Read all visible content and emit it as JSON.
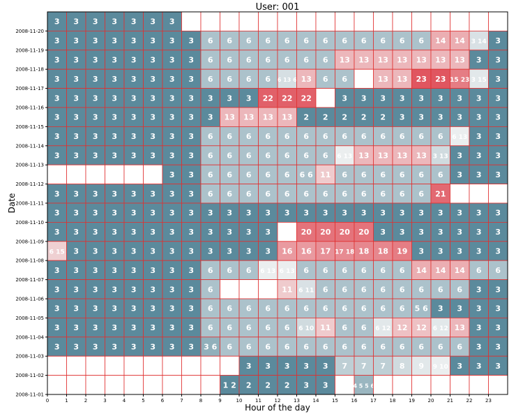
{
  "chart_data": {
    "type": "heatmap",
    "title": "User: 001",
    "xlabel": "Hour of the day",
    "ylabel": "Date",
    "x_ticks": [
      "0",
      "1",
      "2",
      "3",
      "4",
      "5",
      "6",
      "7",
      "8",
      "9",
      "10",
      "11",
      "12",
      "13",
      "14",
      "15",
      "16",
      "17",
      "18",
      "19",
      "20",
      "21",
      "22",
      "23"
    ],
    "y_ticks": [
      "2008-11-20",
      "2008-11-19",
      "2008-11-18",
      "2008-11-17",
      "2008-11-16",
      "2008-11-15",
      "2008-11-14",
      "2008-11-13",
      "2008-11-12",
      "2008-11-11",
      "2008-11-10",
      "2008-11-09",
      "2008-11-08",
      "2008-11-07",
      "2008-11-06",
      "2008-11-05",
      "2008-11-04",
      "2008-11-03",
      "2008-11-02",
      "2008-11-01"
    ],
    "xlim": [
      0,
      24
    ],
    "ylim": [
      "2008-11-01",
      "2008-11-21"
    ],
    "grid": true,
    "colors": {
      "low": "#5b8a9c",
      "mid": "#f4f4f4",
      "high": "#e05660",
      "cell_border": "#e03030",
      "frame": "#000000"
    },
    "vmin": 1,
    "vmax": 23,
    "rows": [
      {
        "label": "2008-11-20",
        "values": [
          3,
          3,
          3,
          3,
          3,
          3,
          3,
          null,
          null,
          null,
          null,
          null,
          null,
          null,
          null,
          null,
          null,
          null,
          null,
          null,
          null,
          null,
          null,
          null
        ]
      },
      {
        "label": "2008-11-19",
        "values": [
          3,
          3,
          3,
          3,
          3,
          3,
          3,
          3,
          6,
          6,
          6,
          6,
          6,
          6,
          6,
          6,
          6,
          6,
          6,
          6,
          14,
          14,
          "3 14",
          3
        ]
      },
      {
        "label": "2008-11-18",
        "values": [
          3,
          3,
          3,
          3,
          3,
          3,
          3,
          3,
          6,
          6,
          6,
          6,
          6,
          6,
          6,
          13,
          13,
          13,
          13,
          13,
          13,
          13,
          3,
          3
        ]
      },
      {
        "label": "2008-11-17",
        "values": [
          3,
          3,
          3,
          3,
          3,
          3,
          3,
          3,
          6,
          6,
          6,
          6,
          "6 13 6",
          13,
          6,
          6,
          null,
          13,
          13,
          23,
          23,
          "15 23",
          "3 15",
          3
        ]
      },
      {
        "label": "2008-11-16",
        "values": [
          3,
          3,
          3,
          3,
          3,
          3,
          3,
          3,
          3,
          3,
          3,
          22,
          22,
          22,
          null,
          3,
          3,
          3,
          3,
          3,
          3,
          3,
          3,
          3
        ]
      },
      {
        "label": "2008-11-15",
        "values": [
          3,
          3,
          3,
          3,
          3,
          3,
          3,
          3,
          3,
          13,
          13,
          13,
          13,
          2,
          2,
          2,
          2,
          2,
          3,
          3,
          3,
          3,
          3,
          3
        ]
      },
      {
        "label": "2008-11-14",
        "values": [
          3,
          3,
          3,
          3,
          3,
          3,
          3,
          3,
          6,
          6,
          6,
          6,
          6,
          6,
          6,
          6,
          6,
          6,
          6,
          6,
          6,
          "6 13",
          3,
          3
        ]
      },
      {
        "label": "2008-11-13",
        "values": [
          3,
          3,
          3,
          3,
          3,
          3,
          3,
          3,
          6,
          6,
          6,
          6,
          6,
          6,
          6,
          "6 13",
          13,
          13,
          13,
          13,
          "3 13",
          3,
          3,
          3
        ]
      },
      {
        "label": "2008-11-12",
        "values": [
          null,
          null,
          null,
          null,
          null,
          null,
          3,
          3,
          6,
          6,
          6,
          6,
          6,
          "6 6",
          11,
          6,
          6,
          6,
          6,
          6,
          6,
          3,
          3,
          3
        ]
      },
      {
        "label": "2008-11-11",
        "values": [
          3,
          3,
          3,
          3,
          3,
          3,
          3,
          3,
          6,
          6,
          6,
          6,
          6,
          6,
          6,
          6,
          6,
          6,
          6,
          6,
          21,
          null,
          null,
          null
        ]
      },
      {
        "label": "2008-11-10",
        "values": [
          3,
          3,
          3,
          3,
          3,
          3,
          3,
          3,
          3,
          3,
          3,
          3,
          3,
          3,
          3,
          3,
          3,
          3,
          3,
          3,
          3,
          3,
          3,
          3
        ]
      },
      {
        "label": "2008-11-09",
        "values": [
          3,
          3,
          3,
          3,
          3,
          3,
          3,
          3,
          3,
          3,
          3,
          3,
          null,
          20,
          20,
          20,
          20,
          3,
          3,
          3,
          3,
          3,
          3,
          3
        ]
      },
      {
        "label": "2008-11-08",
        "values": [
          "6 15",
          3,
          3,
          3,
          3,
          3,
          3,
          3,
          3,
          3,
          3,
          3,
          16,
          16,
          17,
          "17 18",
          18,
          18,
          19,
          3,
          3,
          3,
          3,
          3
        ]
      },
      {
        "label": "2008-11-07",
        "values": [
          3,
          3,
          3,
          3,
          3,
          3,
          3,
          3,
          6,
          6,
          6,
          "6 13",
          "6 13",
          6,
          6,
          6,
          6,
          6,
          6,
          14,
          14,
          14,
          6,
          6
        ]
      },
      {
        "label": "2008-11-06",
        "values": [
          3,
          3,
          3,
          3,
          3,
          3,
          3,
          3,
          6,
          null,
          null,
          null,
          11,
          "6 11",
          6,
          6,
          6,
          6,
          6,
          6,
          6,
          6,
          3,
          3
        ]
      },
      {
        "label": "2008-11-05",
        "values": [
          3,
          3,
          3,
          3,
          3,
          3,
          3,
          3,
          6,
          6,
          6,
          6,
          6,
          6,
          6,
          6,
          6,
          6,
          6,
          "5 6",
          3,
          3,
          3,
          3
        ]
      },
      {
        "label": "2008-11-04",
        "values": [
          3,
          3,
          3,
          3,
          3,
          3,
          3,
          3,
          6,
          6,
          6,
          6,
          6,
          "6 10",
          11,
          6,
          6,
          "6 12",
          12,
          12,
          "6 12",
          13,
          3,
          3
        ]
      },
      {
        "label": "2008-11-03",
        "values": [
          3,
          3,
          3,
          3,
          3,
          3,
          3,
          3,
          "3 6",
          6,
          6,
          6,
          6,
          6,
          6,
          6,
          6,
          6,
          6,
          6,
          6,
          6,
          3,
          3
        ]
      },
      {
        "label": "2008-11-02",
        "values": [
          null,
          null,
          null,
          null,
          null,
          null,
          null,
          null,
          null,
          null,
          3,
          3,
          3,
          3,
          3,
          7,
          7,
          7,
          8,
          9,
          "9 10",
          3,
          3,
          3
        ]
      },
      {
        "label": "2008-11-01",
        "values": [
          null,
          null,
          null,
          null,
          null,
          null,
          null,
          null,
          null,
          "1 2",
          2,
          2,
          2,
          3,
          3,
          null,
          "4 5 5 6",
          null,
          null,
          null,
          null,
          null,
          null,
          null
        ]
      }
    ]
  }
}
